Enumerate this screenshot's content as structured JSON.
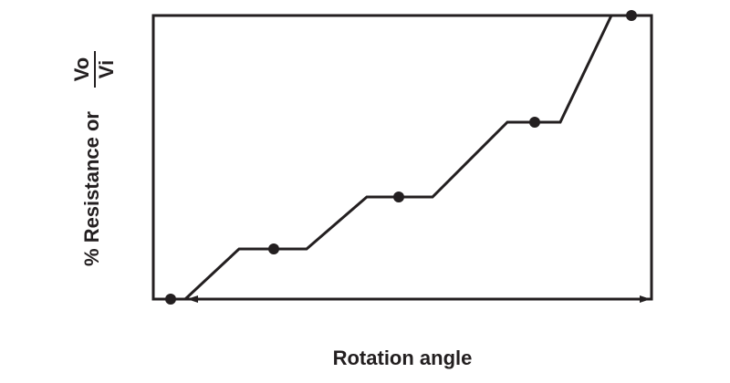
{
  "y_axis_label": "% Resistance or",
  "fraction": {
    "numerator": "Vo",
    "denominator": "Vi"
  },
  "x_axis_label": "Rotation angle"
}
